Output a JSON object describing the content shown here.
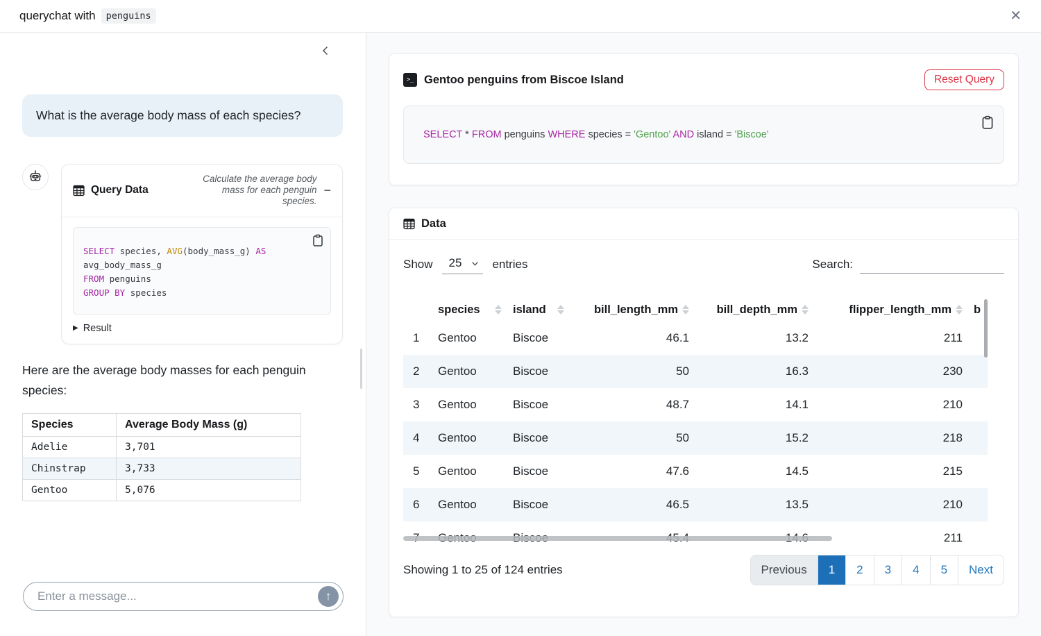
{
  "topbar": {
    "title_prefix": "querychat with",
    "dataset_badge": "penguins",
    "close_icon": "✕"
  },
  "chat": {
    "user_message": "What is the average body mass of each species?",
    "tool_card": {
      "title": "Query Data",
      "subtitle": "Calculate the average body mass for each penguin species.",
      "collapse_label": "−",
      "sql": [
        [
          {
            "t": "SELECT",
            "c": "kw"
          },
          {
            "t": " species, "
          },
          {
            "t": "AVG",
            "c": "fn"
          },
          {
            "t": "(body_mass_g) "
          },
          {
            "t": "AS",
            "c": "kw"
          }
        ],
        [
          {
            "t": "avg_body_mass_g"
          }
        ],
        [
          {
            "t": "FROM",
            "c": "kw"
          },
          {
            "t": " penguins"
          }
        ],
        [
          {
            "t": "GROUP BY",
            "c": "kw"
          },
          {
            "t": " species"
          }
        ]
      ],
      "result_toggle": "Result",
      "result_caret": "▶"
    },
    "assistant_text": "Here are the average body masses for each penguin species:",
    "result_table": {
      "headers": [
        "Species",
        "Average Body Mass (g)"
      ],
      "rows": [
        [
          "Adelie",
          "3,701"
        ],
        [
          "Chinstrap",
          "3,733"
        ],
        [
          "Gentoo",
          "5,076"
        ]
      ],
      "striped_rows": [
        1
      ]
    },
    "composer": {
      "placeholder": "Enter a message...",
      "send_icon": "↑"
    }
  },
  "main": {
    "query_card": {
      "terminal_glyph": ">_",
      "title": "Gentoo penguins from Biscoe Island",
      "reset_button": "Reset Query",
      "sql": [
        [
          {
            "t": "SELECT",
            "c": "kw"
          },
          {
            "t": " * "
          },
          {
            "t": "FROM",
            "c": "kw"
          },
          {
            "t": " penguins "
          },
          {
            "t": "WHERE",
            "c": "kw"
          },
          {
            "t": " species = "
          },
          {
            "t": "'Gentoo'",
            "c": "str"
          },
          {
            "t": " "
          },
          {
            "t": "AND",
            "c": "kw"
          },
          {
            "t": " island = "
          },
          {
            "t": "'Biscoe'",
            "c": "str"
          }
        ]
      ]
    },
    "data_card": {
      "title": "Data",
      "show_label": "Show",
      "page_size": "25",
      "entries_label": "entries",
      "search_label": "Search:",
      "search_value": "",
      "table": {
        "columns": [
          {
            "label": "",
            "align": "left",
            "sortable": false
          },
          {
            "label": "species",
            "align": "left",
            "sortable": true
          },
          {
            "label": "island",
            "align": "left",
            "sortable": true
          },
          {
            "label": "bill_length_mm",
            "align": "right",
            "sortable": true
          },
          {
            "label": "bill_depth_mm",
            "align": "right",
            "sortable": true
          },
          {
            "label": "flipper_length_mm",
            "align": "right",
            "sortable": true
          },
          {
            "label": "b",
            "align": "left",
            "sortable": false
          }
        ],
        "rows": [
          [
            "1",
            "Gentoo",
            "Biscoe",
            "46.1",
            "13.2",
            "211",
            ""
          ],
          [
            "2",
            "Gentoo",
            "Biscoe",
            "50",
            "16.3",
            "230",
            ""
          ],
          [
            "3",
            "Gentoo",
            "Biscoe",
            "48.7",
            "14.1",
            "210",
            ""
          ],
          [
            "4",
            "Gentoo",
            "Biscoe",
            "50",
            "15.2",
            "218",
            ""
          ],
          [
            "5",
            "Gentoo",
            "Biscoe",
            "47.6",
            "14.5",
            "215",
            ""
          ],
          [
            "6",
            "Gentoo",
            "Biscoe",
            "46.5",
            "13.5",
            "210",
            ""
          ],
          [
            "7",
            "Gentoo",
            "Biscoe",
            "45.4",
            "14.6",
            "211",
            ""
          ]
        ],
        "striped_rows": [
          1,
          3,
          5
        ]
      },
      "footer": {
        "info": "Showing 1 to 25 of 124 entries",
        "prev_label": "Previous",
        "pages": [
          "1",
          "2",
          "3",
          "4",
          "5"
        ],
        "active_page": "1",
        "next_label": "Next"
      }
    }
  },
  "colors": {
    "accent_blue": "#1d70b7",
    "link_blue": "#2176bd",
    "danger_red": "#dc3545",
    "user_bubble": "#e8f1f8",
    "row_stripe": "#f1f6fa",
    "sql_keyword": "#a626a4",
    "sql_function": "#c18401",
    "sql_string": "#50a14f"
  }
}
